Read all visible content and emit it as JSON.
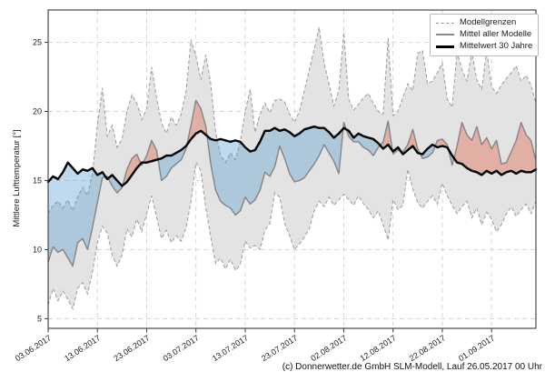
{
  "footer": {
    "credit": "(c) Donnerwetter.de GmbH SLM-Modell, Lauf 26.05.2017 00 Uhr"
  },
  "chart_data": {
    "type": "area",
    "title": "",
    "ylabel": "Mittlere Lufttemperatur [°]",
    "xlabel": "",
    "grid": "dashed",
    "legend_position": "upper right",
    "legend": {
      "entries": [
        "Modellgrenzen",
        "Mittel aller Modelle",
        "Mittelwert 30 Jahre"
      ]
    },
    "ylim": [
      4.3,
      27.34
    ],
    "xlim_days": [
      0,
      99
    ],
    "y_ticks": [
      5,
      10,
      15,
      20,
      25
    ],
    "x_tick_days": [
      0,
      10,
      20,
      30,
      40,
      50,
      60,
      70,
      80,
      90
    ],
    "x_ticklabels": [
      "03.06.2017",
      "13.06.2017",
      "23.06.2017",
      "03.07.2017",
      "13.07.2017",
      "23.07.2017",
      "02.08.2017",
      "12.08.2017",
      "22.08.2017",
      "01.09.2017"
    ],
    "colors": {
      "band": "#e3e3e3",
      "band_edge": "#9b9b9b",
      "mean_line": "#848484",
      "mean30_line": "#000000",
      "fill_below": "rgba(70,150,200,0.35)",
      "fill_above": "rgba(222,110,85,0.45)",
      "grid": "#d3d3d3",
      "frame": "#3a3a3a",
      "tick_text": "#222222"
    },
    "series": [
      {
        "key": "max",
        "name": "Modellgrenzen (Maximum)",
        "values": [
          12.6,
          13.2,
          13.5,
          13.0,
          13.6,
          12.8,
          13.8,
          14.5,
          13.9,
          15.5,
          19.0,
          21.7,
          18.2,
          19.0,
          17.4,
          18.0,
          20.0,
          21.2,
          20.6,
          19.4,
          20.2,
          23.2,
          21.0,
          19.2,
          18.4,
          19.6,
          19.0,
          19.8,
          21.5,
          25.2,
          24.0,
          22.3,
          24.1,
          22.0,
          18.5,
          16.8,
          16.3,
          17.0,
          16.5,
          17.8,
          20.0,
          21.6,
          18.5,
          19.8,
          20.6,
          19.9,
          20.8,
          20.9,
          20.7,
          19.8,
          19.2,
          20.0,
          21.5,
          23.0,
          24.5,
          26.1,
          23.5,
          22.0,
          20.4,
          21.5,
          25.7,
          20.9,
          20.1,
          20.5,
          21.0,
          21.3,
          20.6,
          20.0,
          19.8,
          25.3,
          19.7,
          20.0,
          21.0,
          22.0,
          21.5,
          24.2,
          24.4,
          22.0,
          22.2,
          22.8,
          23.5,
          20.9,
          20.3,
          24.3,
          23.0,
          22.2,
          24.3,
          22.3,
          21.6,
          24.4,
          21.8,
          21.3,
          21.9,
          22.4,
          22.8,
          23.3,
          22.2,
          22.6,
          21.9,
          20.6
        ]
      },
      {
        "key": "min",
        "name": "Modellgrenzen (Minimum)",
        "values": [
          6.0,
          7.2,
          6.3,
          7.0,
          6.4,
          5.7,
          7.2,
          7.6,
          6.8,
          8.4,
          10.5,
          11.7,
          11.2,
          9.6,
          8.8,
          9.6,
          11.5,
          10.9,
          12.2,
          11.3,
          12.6,
          13.9,
          12.4,
          10.8,
          11.4,
          10.5,
          11.0,
          10.6,
          11.6,
          13.5,
          16.3,
          15.7,
          13.0,
          10.9,
          9.0,
          9.4,
          8.6,
          9.3,
          8.5,
          8.9,
          10.6,
          10.1,
          10.3,
          10.0,
          11.4,
          11.9,
          14.1,
          13.8,
          11.9,
          11.0,
          10.0,
          10.4,
          10.9,
          11.5,
          12.8,
          13.5,
          13.1,
          13.8,
          13.2,
          13.6,
          14.0,
          13.6,
          13.2,
          13.9,
          13.3,
          12.9,
          12.3,
          12.8,
          11.8,
          10.7,
          13.6,
          12.9,
          13.2,
          15.8,
          14.4,
          13.4,
          13.0,
          13.5,
          13.9,
          13.3,
          14.8,
          13.9,
          13.2,
          12.6,
          13.1,
          13.5,
          12.3,
          13.0,
          11.8,
          12.7,
          12.2,
          11.3,
          11.8,
          12.6,
          13.1,
          12.4,
          12.9,
          13.3,
          12.6,
          13.5
        ]
      },
      {
        "key": "mean",
        "name": "Mittel aller Modelle",
        "values": [
          9.1,
          10.2,
          9.8,
          10.0,
          9.4,
          8.8,
          10.5,
          10.8,
          10.0,
          11.6,
          13.4,
          15.2,
          15.3,
          14.6,
          14.1,
          14.5,
          15.8,
          16.6,
          16.9,
          16.1,
          16.8,
          17.9,
          17.2,
          15.0,
          15.3,
          15.9,
          16.2,
          16.5,
          17.3,
          19.0,
          20.8,
          20.2,
          18.9,
          16.2,
          14.3,
          13.5,
          13.2,
          13.0,
          12.5,
          12.8,
          13.8,
          13.3,
          13.6,
          14.3,
          15.6,
          15.3,
          16.0,
          17.5,
          16.6,
          15.5,
          14.9,
          15.0,
          15.2,
          15.7,
          16.2,
          16.8,
          17.6,
          17.0,
          16.4,
          15.5,
          19.2,
          18.2,
          17.8,
          17.8,
          17.4,
          17.2,
          16.8,
          17.4,
          17.8,
          19.3,
          16.9,
          17.2,
          17.1,
          17.6,
          18.7,
          17.3,
          16.6,
          16.7,
          17.0,
          17.9,
          18.0,
          17.6,
          16.1,
          17.5,
          19.2,
          18.3,
          17.9,
          18.9,
          17.6,
          18.1,
          17.3,
          17.9,
          16.2,
          16.3,
          17.1,
          17.9,
          19.2,
          18.3,
          17.9,
          16.4
        ]
      },
      {
        "key": "mean30",
        "name": "Mittelwert 30 Jahre",
        "values": [
          14.9,
          15.3,
          15.1,
          15.6,
          16.3,
          15.9,
          15.5,
          15.8,
          15.7,
          15.9,
          15.4,
          15.6,
          15.1,
          15.4,
          15.0,
          14.6,
          14.9,
          15.4,
          15.9,
          16.3,
          16.3,
          16.4,
          16.5,
          16.6,
          16.8,
          16.8,
          17.0,
          17.2,
          17.5,
          18.0,
          18.4,
          18.6,
          18.3,
          18.0,
          17.9,
          18.0,
          17.9,
          17.8,
          17.9,
          17.8,
          17.4,
          17.1,
          17.2,
          17.8,
          18.6,
          18.6,
          18.8,
          18.6,
          18.7,
          18.5,
          18.2,
          18.4,
          18.7,
          18.8,
          18.9,
          18.8,
          18.8,
          18.5,
          18.1,
          18.4,
          18.8,
          18.6,
          18.1,
          18.4,
          18.2,
          18.1,
          18.0,
          17.7,
          17.3,
          17.6,
          17.1,
          17.4,
          16.9,
          17.2,
          17.5,
          17.0,
          16.9,
          17.3,
          17.6,
          17.4,
          17.5,
          17.4,
          16.8,
          16.3,
          16.2,
          15.9,
          15.7,
          15.6,
          15.4,
          15.7,
          15.5,
          15.7,
          15.4,
          15.6,
          15.7,
          15.5,
          15.7,
          15.6,
          15.6,
          15.8
        ]
      }
    ]
  }
}
